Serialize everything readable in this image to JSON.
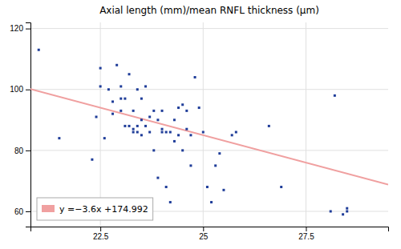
{
  "chart_data": {
    "type": "scatter",
    "title": "Axial length (mm)/mean RNFL thickness (μm)",
    "series": [
      {
        "name": "y =−3.6x +174.992",
        "type": "line",
        "color": "#f0a0a0",
        "x": [
          20.8,
          29.5
        ],
        "values": [
          100.112,
          68.792
        ]
      },
      {
        "type": "scatter",
        "marker": "square",
        "color": "#1f3d99",
        "x": [
          21.0,
          21.5,
          22.3,
          22.4,
          22.5,
          22.5,
          22.6,
          22.7,
          22.8,
          22.8,
          22.9,
          23.0,
          23.0,
          23.0,
          23.1,
          23.1,
          23.2,
          23.2,
          23.3,
          23.3,
          23.3,
          23.4,
          23.4,
          23.4,
          23.5,
          23.5,
          23.5,
          23.6,
          23.6,
          23.7,
          23.7,
          23.8,
          23.8,
          23.9,
          23.9,
          24.0,
          24.0,
          24.0,
          24.1,
          24.1,
          24.2,
          24.2,
          24.3,
          24.3,
          24.4,
          24.4,
          24.5,
          24.5,
          24.6,
          24.6,
          24.7,
          24.7,
          24.8,
          24.9,
          25.0,
          25.1,
          25.2,
          25.3,
          25.4,
          25.5,
          25.7,
          25.8,
          26.6,
          26.9,
          28.1,
          28.2,
          28.4,
          28.5,
          28.5
        ],
        "values": [
          113,
          84,
          77,
          91,
          101,
          107,
          84,
          100,
          92,
          96,
          108,
          93,
          97,
          101,
          88,
          97,
          88,
          105,
          86,
          87,
          93,
          86,
          88,
          100,
          85,
          90,
          97,
          88,
          101,
          86,
          91,
          80,
          93,
          71,
          90,
          86,
          87,
          93,
          68,
          86,
          63,
          86,
          83,
          90,
          85,
          94,
          80,
          95,
          87,
          93,
          75,
          85,
          104,
          94,
          86,
          68,
          63,
          75,
          79,
          67,
          85,
          86,
          88,
          68,
          60,
          98,
          59,
          60,
          61
        ]
      }
    ],
    "xlim": [
      20.8,
      29.5
    ],
    "ylim": [
      55,
      122
    ],
    "xticks": [
      22.5,
      25,
      27.5
    ],
    "yticks": [
      60,
      80,
      100,
      120
    ],
    "grid": true,
    "legend": "lower left"
  }
}
